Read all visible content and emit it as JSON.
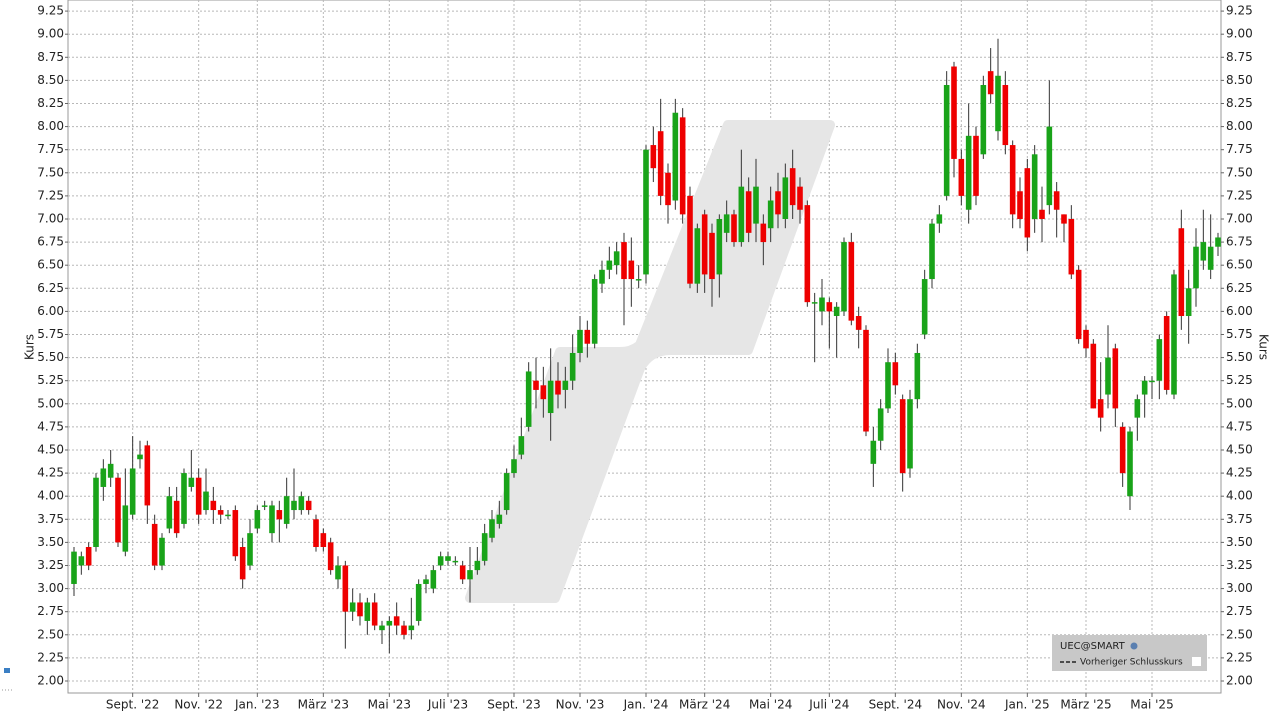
{
  "chart_data": {
    "type": "candlestick",
    "y_label": "Kurs",
    "y2_label": "Kurs",
    "legend": {
      "symbol": "UEC@SMART",
      "entry": "Vorheriger Schlusskurs"
    },
    "up_color": "#19a319",
    "down_color": "#ee0000",
    "ylim": [
      1.87,
      9.37
    ],
    "yticks": [
      {
        "value": 2,
        "label": "2.00"
      },
      {
        "value": 2.25,
        "label": "2.25"
      },
      {
        "value": 2.5,
        "label": "2.50"
      },
      {
        "value": 2.75,
        "label": "2.75"
      },
      {
        "value": 3,
        "label": "3.00"
      },
      {
        "value": 3.25,
        "label": "3.25"
      },
      {
        "value": 3.5,
        "label": "3.50"
      },
      {
        "value": 3.75,
        "label": "3.75"
      },
      {
        "value": 4,
        "label": "4.00"
      },
      {
        "value": 4.25,
        "label": "4.25"
      },
      {
        "value": 4.5,
        "label": "4.50"
      },
      {
        "value": 4.75,
        "label": "4.75"
      },
      {
        "value": 5,
        "label": "5.00"
      },
      {
        "value": 5.25,
        "label": "5.25"
      },
      {
        "value": 5.5,
        "label": "5.50"
      },
      {
        "value": 5.75,
        "label": "5.75"
      },
      {
        "value": 6,
        "label": "6.00"
      },
      {
        "value": 6.25,
        "label": "6.25"
      },
      {
        "value": 6.5,
        "label": "6.50"
      },
      {
        "value": 6.75,
        "label": "6.75"
      },
      {
        "value": 7,
        "label": "7.00"
      },
      {
        "value": 7.25,
        "label": "7.25"
      },
      {
        "value": 7.5,
        "label": "7.50"
      },
      {
        "value": 7.75,
        "label": "7.75"
      },
      {
        "value": 8,
        "label": "8.00"
      },
      {
        "value": 8.25,
        "label": "8.25"
      },
      {
        "value": 8.5,
        "label": "8.50"
      },
      {
        "value": 8.75,
        "label": "8.75"
      },
      {
        "value": 9,
        "label": "9.00"
      },
      {
        "value": 9.25,
        "label": "9.25"
      }
    ],
    "grid": true,
    "categories": [
      null,
      null,
      null,
      null,
      null,
      null,
      null,
      null,
      "Sept. '22",
      null,
      null,
      null,
      null,
      null,
      null,
      null,
      null,
      "Nov. '22",
      null,
      null,
      null,
      null,
      null,
      null,
      null,
      "Jan. '23",
      null,
      null,
      null,
      null,
      null,
      null,
      null,
      null,
      "März '23",
      null,
      null,
      null,
      null,
      null,
      null,
      null,
      null,
      "Mai '23",
      null,
      null,
      null,
      null,
      null,
      null,
      null,
      "Juli '23",
      null,
      null,
      null,
      null,
      null,
      null,
      null,
      null,
      "Sept. '23",
      null,
      null,
      null,
      null,
      null,
      null,
      null,
      null,
      "Nov. '23",
      null,
      null,
      null,
      null,
      null,
      null,
      null,
      null,
      "Jan. '24",
      null,
      null,
      null,
      null,
      null,
      null,
      null,
      "März '24",
      null,
      null,
      null,
      null,
      null,
      null,
      null,
      null,
      "Mai '24",
      null,
      null,
      null,
      null,
      null,
      null,
      null,
      "Juli '24",
      null,
      null,
      null,
      null,
      null,
      null,
      null,
      null,
      "Sept. '24",
      null,
      null,
      null,
      null,
      null,
      null,
      null,
      null,
      "Nov. '24",
      null,
      null,
      null,
      null,
      null,
      null,
      null,
      null,
      "Jan. '25",
      null,
      null,
      null,
      null,
      null,
      null,
      null,
      "März '25",
      null,
      null,
      null,
      null,
      null,
      null,
      null,
      null,
      "Mai '25",
      null,
      null,
      null,
      null,
      null,
      null,
      null,
      null,
      null
    ],
    "open": [
      3.05,
      3.25,
      3.45,
      3.45,
      4.1,
      4.2,
      4.2,
      3.4,
      3.8,
      4.4,
      4.55,
      3.7,
      3.25,
      3.65,
      3.95,
      3.7,
      4.1,
      4.2,
      3.85,
      3.95,
      3.85,
      3.8,
      3.85,
      3.45,
      3.25,
      3.65,
      3.9,
      3.6,
      3.85,
      3.7,
      3.85,
      3.85,
      3.95,
      3.75,
      3.6,
      3.5,
      3.1,
      3.25,
      2.75,
      2.85,
      2.65,
      2.85,
      2.55,
      2.6,
      2.7,
      2.6,
      2.55,
      2.65,
      3.05,
      3.0,
      3.25,
      3.3,
      3.3,
      3.25,
      3.1,
      3.2,
      3.3,
      3.55,
      3.7,
      3.85,
      4.25,
      4.45,
      4.75,
      5.25,
      5.2,
      4.9,
      5.25,
      5.15,
      5.25,
      5.55,
      5.8,
      5.65,
      6.3,
      6.45,
      6.5,
      6.75,
      6.55,
      6.35,
      6.4,
      7.8,
      7.95,
      7.5,
      7.2,
      8.1,
      7.25,
      6.3,
      7.05,
      6.85,
      6.4,
      6.85,
      7.05,
      6.75,
      7.3,
      6.95,
      6.95,
      6.9,
      7.3,
      7.0,
      7.55,
      7.35,
      7.15,
      6.1,
      6.0,
      6.1,
      5.95,
      6.0,
      6.75,
      5.95,
      5.8,
      4.35,
      4.6,
      4.95,
      5.45,
      5.05,
      4.3,
      5.05,
      5.75,
      6.35,
      6.95,
      7.25,
      8.65,
      7.65,
      7.1,
      7.9,
      7.7,
      8.6,
      7.95,
      8.45,
      7.8,
      7.3,
      7.55,
      7.0,
      7.1,
      7.15,
      7.3,
      7.05,
      7.0,
      6.45,
      5.8,
      5.65,
      5.05,
      5.1,
      5.6,
      4.75,
      4.0,
      4.85,
      5.1,
      5.25,
      5.25,
      5.95,
      5.1,
      6.9,
      5.95,
      6.25,
      6.55,
      6.45,
      6.7
    ],
    "high": [
      3.45,
      3.4,
      3.5,
      4.25,
      4.4,
      4.5,
      4.25,
      4.3,
      4.65,
      4.6,
      4.6,
      3.8,
      3.6,
      4.1,
      4.1,
      4.3,
      4.5,
      4.3,
      4.3,
      4.1,
      3.9,
      3.85,
      3.9,
      3.55,
      3.75,
      3.9,
      3.95,
      3.95,
      3.95,
      4.2,
      4.3,
      4.05,
      4.0,
      3.8,
      3.65,
      3.55,
      3.35,
      3.3,
      3.0,
      2.95,
      2.9,
      2.95,
      2.65,
      2.7,
      2.85,
      2.65,
      2.9,
      3.1,
      3.15,
      3.25,
      3.4,
      3.4,
      3.35,
      3.3,
      3.45,
      3.45,
      3.7,
      3.85,
      3.95,
      4.3,
      4.55,
      4.85,
      5.45,
      5.5,
      5.4,
      5.6,
      5.45,
      5.4,
      5.75,
      5.95,
      5.9,
      6.4,
      6.55,
      6.7,
      6.75,
      6.85,
      6.8,
      6.5,
      7.8,
      8.0,
      8.3,
      7.6,
      8.3,
      8.2,
      7.35,
      6.95,
      7.1,
      6.95,
      7.05,
      7.2,
      7.1,
      7.75,
      7.45,
      7.65,
      7.05,
      7.35,
      7.5,
      7.6,
      7.75,
      7.45,
      7.2,
      6.2,
      6.35,
      6.15,
      6.1,
      6.8,
      6.85,
      6.05,
      5.85,
      4.75,
      5.05,
      5.6,
      5.55,
      5.1,
      5.15,
      5.65,
      6.45,
      7.0,
      7.15,
      8.6,
      8.7,
      7.75,
      8.25,
      8.0,
      8.55,
      8.85,
      8.95,
      8.6,
      7.85,
      7.45,
      7.65,
      7.8,
      7.35,
      8.5,
      7.4,
      7.05,
      7.15,
      6.5,
      5.85,
      5.7,
      5.45,
      5.85,
      5.65,
      4.8,
      4.75,
      5.1,
      5.3,
      5.3,
      5.75,
      6.0,
      6.45,
      7.1,
      6.45,
      6.9,
      7.1,
      7.05,
      6.85
    ],
    "low": [
      2.92,
      3.15,
      3.2,
      3.4,
      3.95,
      4.1,
      3.45,
      3.35,
      3.75,
      4.3,
      3.7,
      3.2,
      3.2,
      3.6,
      3.55,
      3.65,
      4.05,
      3.7,
      3.8,
      3.7,
      3.7,
      3.75,
      3.3,
      3.0,
      3.2,
      3.6,
      3.85,
      3.5,
      3.5,
      3.65,
      3.75,
      3.8,
      3.8,
      3.4,
      3.4,
      3.15,
      3.0,
      2.35,
      2.65,
      2.6,
      2.5,
      2.55,
      2.4,
      2.3,
      2.5,
      2.45,
      2.45,
      2.6,
      2.95,
      2.95,
      3.2,
      3.25,
      3.25,
      3.05,
      2.85,
      3.15,
      3.25,
      3.5,
      3.65,
      3.8,
      4.2,
      4.4,
      4.7,
      4.95,
      4.85,
      4.6,
      4.95,
      4.95,
      5.15,
      5.45,
      5.5,
      5.6,
      6.2,
      6.35,
      6.4,
      5.85,
      6.05,
      6.25,
      6.3,
      7.4,
      7.15,
      6.95,
      7.1,
      6.95,
      6.25,
      6.2,
      6.2,
      6.05,
      6.15,
      6.75,
      6.7,
      6.7,
      6.75,
      6.75,
      6.5,
      6.75,
      6.9,
      6.9,
      7.0,
      6.95,
      6.05,
      5.45,
      5.85,
      5.6,
      5.5,
      5.95,
      5.85,
      5.6,
      4.65,
      4.1,
      4.5,
      4.9,
      5.1,
      4.05,
      4.2,
      4.95,
      5.7,
      6.25,
      6.85,
      7.2,
      7.45,
      7.15,
      6.95,
      7.15,
      7.65,
      8.25,
      7.85,
      7.7,
      6.9,
      6.9,
      6.65,
      6.85,
      6.75,
      7.05,
      6.8,
      6.75,
      6.35,
      5.65,
      5.5,
      4.95,
      4.7,
      4.95,
      4.75,
      4.1,
      3.85,
      4.6,
      4.85,
      5.05,
      5.05,
      5.1,
      5.05,
      5.8,
      5.65,
      6.05,
      6.45,
      6.35,
      6.6
    ],
    "close": [
      3.4,
      3.35,
      3.25,
      4.2,
      4.3,
      4.35,
      3.5,
      3.9,
      4.3,
      4.45,
      3.9,
      3.25,
      3.55,
      4.0,
      3.6,
      4.25,
      4.2,
      3.8,
      4.05,
      3.85,
      3.8,
      3.8,
      3.35,
      3.1,
      3.6,
      3.85,
      3.9,
      3.9,
      3.75,
      4.0,
      3.95,
      4.0,
      3.85,
      3.45,
      3.45,
      3.2,
      3.25,
      2.75,
      2.85,
      2.7,
      2.85,
      2.6,
      2.6,
      2.65,
      2.6,
      2.5,
      2.6,
      3.05,
      3.1,
      3.2,
      3.35,
      3.35,
      3.3,
      3.1,
      3.2,
      3.3,
      3.6,
      3.75,
      3.8,
      4.25,
      4.4,
      4.65,
      5.35,
      5.15,
      5.05,
      5.25,
      5.1,
      5.25,
      5.55,
      5.8,
      5.65,
      6.35,
      6.45,
      6.55,
      6.65,
      6.35,
      6.35,
      6.35,
      7.75,
      7.55,
      7.25,
      7.15,
      8.15,
      7.05,
      6.3,
      6.9,
      6.4,
      6.35,
      7.0,
      7.05,
      6.75,
      7.35,
      6.85,
      7.35,
      6.75,
      7.2,
      7.05,
      7.45,
      7.15,
      7.1,
      6.1,
      6.1,
      6.15,
      6.0,
      6.05,
      6.75,
      5.9,
      5.8,
      4.7,
      4.6,
      4.95,
      5.45,
      5.2,
      4.25,
      5.05,
      5.55,
      6.35,
      6.95,
      7.05,
      8.45,
      7.65,
      7.25,
      7.9,
      7.25,
      8.45,
      8.35,
      8.55,
      7.8,
      7.05,
      7.0,
      6.8,
      7.7,
      7.0,
      8.0,
      7.1,
      6.95,
      6.4,
      5.7,
      5.6,
      4.95,
      4.85,
      5.5,
      4.95,
      4.25,
      4.7,
      5.05,
      5.25,
      5.25,
      5.7,
      5.15,
      6.4,
      5.95,
      6.25,
      6.7,
      6.75,
      6.7,
      6.8
    ]
  }
}
